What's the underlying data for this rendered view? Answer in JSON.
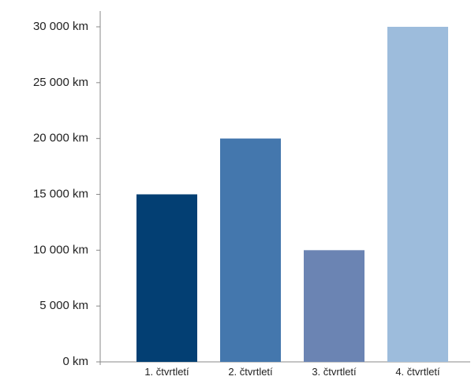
{
  "chart_data": {
    "type": "bar",
    "categories": [
      "1. čtvrtletí",
      "2. čtvrtletí",
      "3. čtvrtletí",
      "4. čtvrtletí"
    ],
    "values": [
      15000,
      20000,
      10000,
      30000
    ],
    "y_ticks": [
      0,
      5000,
      10000,
      15000,
      20000,
      25000,
      30000
    ],
    "y_tick_labels": [
      "0 km",
      "5 000 km",
      "10 000 km",
      "15 000 km",
      "20 000 km",
      "25 000 km",
      "30 000 km"
    ],
    "ylim": [
      0,
      30000
    ],
    "grid": false,
    "legend": "none",
    "colors": [
      "#033f73",
      "#4477ad",
      "#6b84b3",
      "#9dbcdc"
    ],
    "axis_color": "#888888"
  }
}
